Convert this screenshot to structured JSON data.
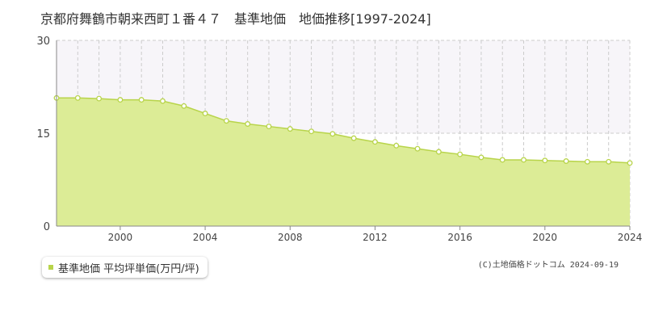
{
  "page": {
    "title": "京都府舞鶴市朝来西町１番４７　基準地価　地価推移[1997-2024]",
    "credit": "(C)土地価格ドットコム 2024-09-19"
  },
  "colors": {
    "fill": "#dcec96",
    "line": "#b8d44a",
    "marker_fill": "#ffffff",
    "band": "#f7f5f9",
    "grid": "#cccccc",
    "axis": "#888888"
  },
  "chart_data": {
    "type": "area",
    "title": "京都府舞鶴市朝来西町１番４７　基準地価　地価推移[1997-2024]",
    "xlabel": "",
    "ylabel": "",
    "xlim": [
      1997,
      2024
    ],
    "ylim": [
      0,
      30
    ],
    "yticks": [
      0,
      15,
      30
    ],
    "xticks": [
      2000,
      2004,
      2008,
      2012,
      2016,
      2020,
      2024
    ],
    "grid": true,
    "legend_position": "bottom-left",
    "series": [
      {
        "name": "基準地価 平均坪単価(万円/坪)",
        "x": [
          1997,
          1998,
          1999,
          2000,
          2001,
          2002,
          2003,
          2004,
          2005,
          2006,
          2007,
          2008,
          2009,
          2010,
          2011,
          2012,
          2013,
          2014,
          2015,
          2016,
          2017,
          2018,
          2019,
          2020,
          2021,
          2022,
          2023,
          2024
        ],
        "y": [
          20.7,
          20.7,
          20.6,
          20.4,
          20.4,
          20.2,
          19.4,
          18.2,
          17.0,
          16.5,
          16.1,
          15.7,
          15.3,
          14.9,
          14.2,
          13.6,
          13.0,
          12.5,
          12.0,
          11.6,
          11.1,
          10.7,
          10.7,
          10.6,
          10.5,
          10.4,
          10.4,
          10.2
        ]
      }
    ]
  }
}
